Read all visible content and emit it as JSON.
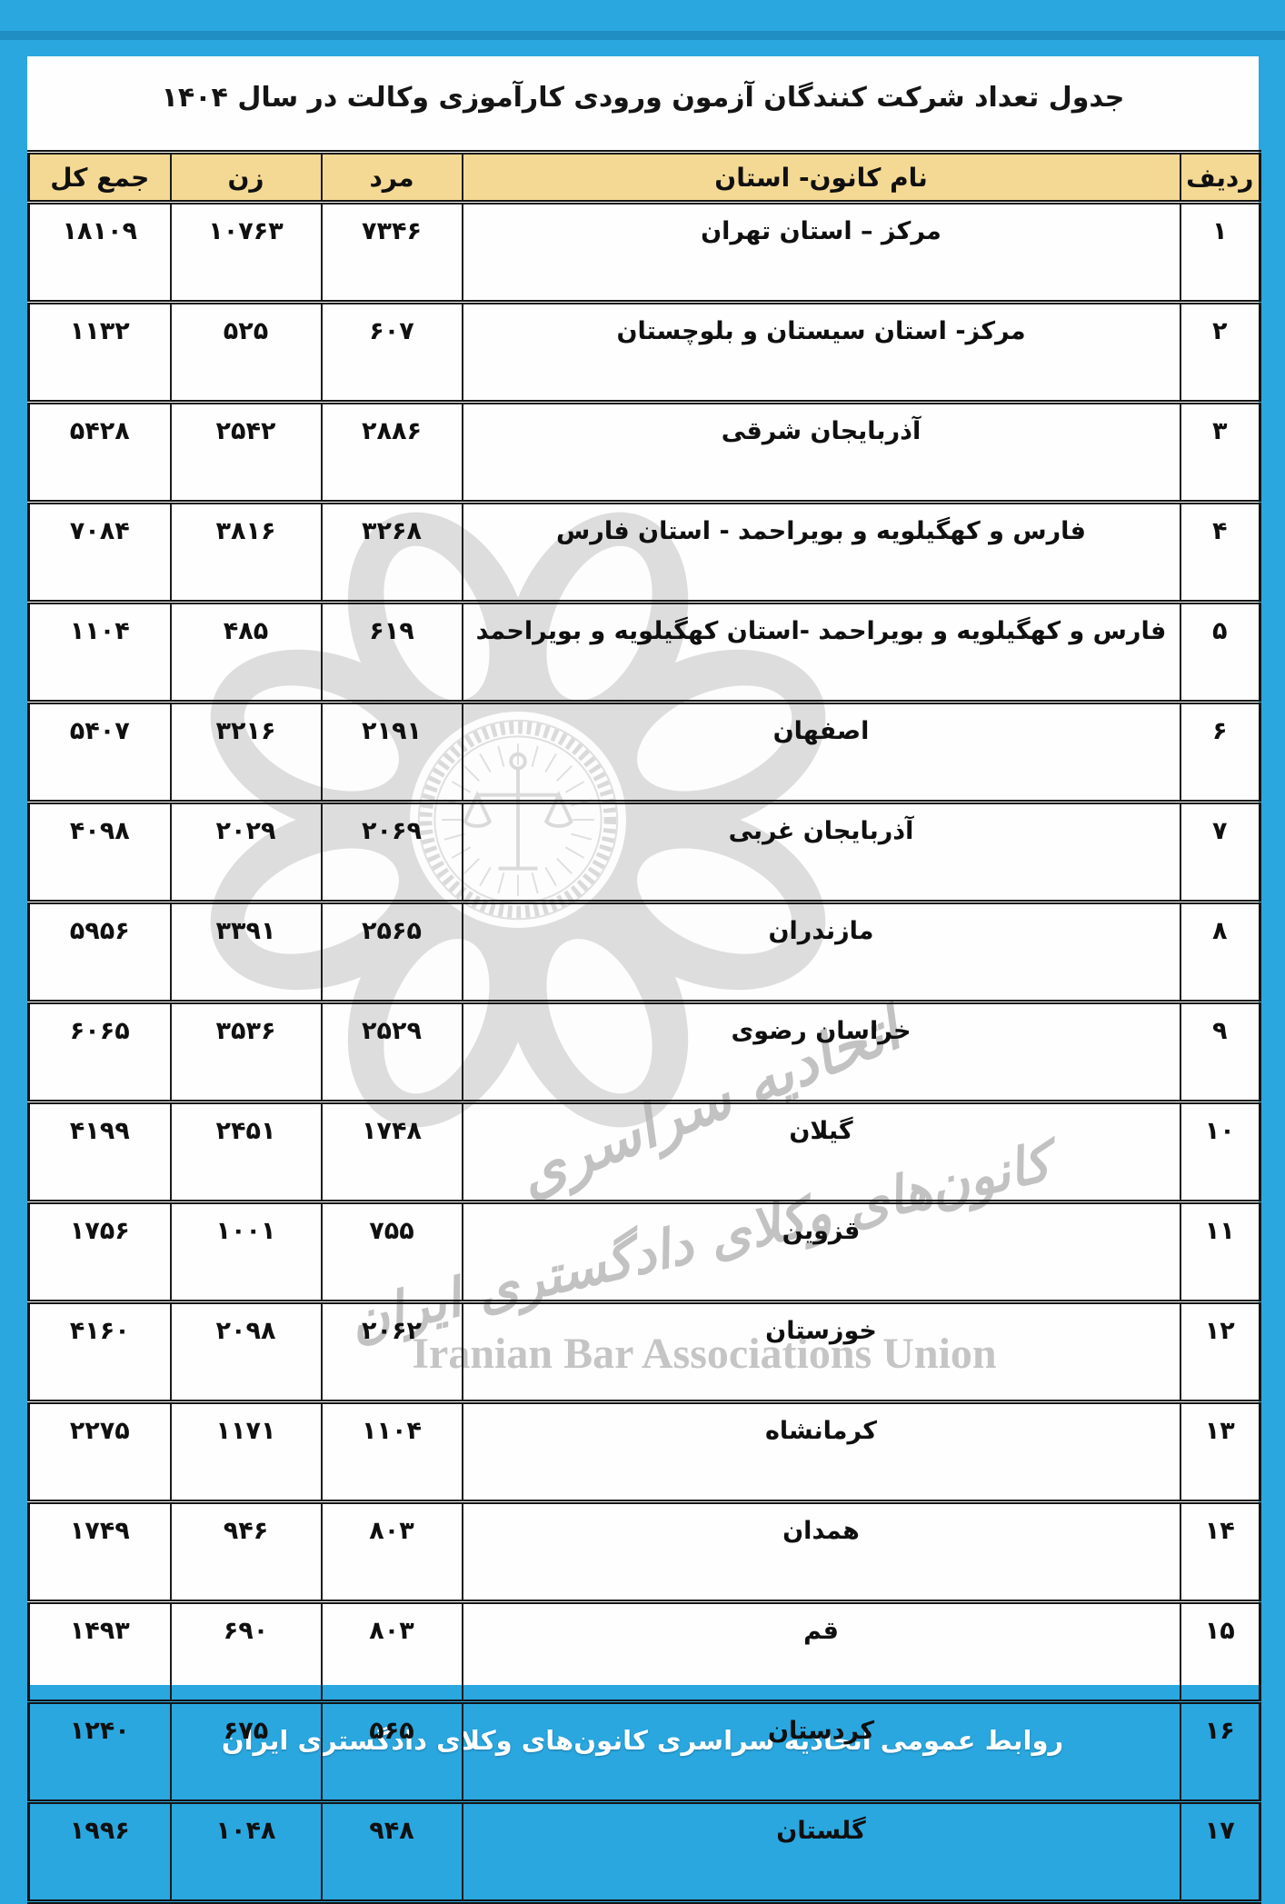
{
  "page": {
    "title": "جدول تعداد شرکت کنندگان آزمون ورودی کارآموزی وکالت در سال ۱۴۰۴",
    "footer": "روابط عمومی اتحادیه سراسری کانون‌های وکلای دادگستری ایران"
  },
  "table": {
    "headers": {
      "row": "ردیف",
      "name": "نام کانون- استان",
      "male": "مرد",
      "female": "زن",
      "total": "جمع کل"
    },
    "rows": [
      {
        "row": "۱",
        "name": "مرکز – استان تهران",
        "male": "۷۳۴۶",
        "female": "۱۰۷۶۳",
        "total": "۱۸۱۰۹"
      },
      {
        "row": "۲",
        "name": "مرکز- استان سیستان و بلوچستان",
        "male": "۶۰۷",
        "female": "۵۲۵",
        "total": "۱۱۳۲"
      },
      {
        "row": "۳",
        "name": "آذربایجان شرقی",
        "male": "۲۸۸۶",
        "female": "۲۵۴۲",
        "total": "۵۴۲۸"
      },
      {
        "row": "۴",
        "name": "فارس و کهگیلویه و بویراحمد - استان فارس",
        "male": "۳۲۶۸",
        "female": "۳۸۱۶",
        "total": "۷۰۸۴"
      },
      {
        "row": "۵",
        "name": "فارس و کهگیلویه و بویراحمد -استان کهگیلویه و بویراحمد",
        "male": "۶۱۹",
        "female": "۴۸۵",
        "total": "۱۱۰۴"
      },
      {
        "row": "۶",
        "name": "اصفهان",
        "male": "۲۱۹۱",
        "female": "۳۲۱۶",
        "total": "۵۴۰۷"
      },
      {
        "row": "۷",
        "name": "آذربایجان غربی",
        "male": "۲۰۶۹",
        "female": "۲۰۲۹",
        "total": "۴۰۹۸"
      },
      {
        "row": "۸",
        "name": "مازندران",
        "male": "۲۵۶۵",
        "female": "۳۳۹۱",
        "total": "۵۹۵۶"
      },
      {
        "row": "۹",
        "name": "خراسان رضوی",
        "male": "۲۵۲۹",
        "female": "۳۵۳۶",
        "total": "۶۰۶۵"
      },
      {
        "row": "۱۰",
        "name": "گیلان",
        "male": "۱۷۴۸",
        "female": "۲۴۵۱",
        "total": "۴۱۹۹"
      },
      {
        "row": "۱۱",
        "name": "قزوین",
        "male": "۷۵۵",
        "female": "۱۰۰۱",
        "total": "۱۷۵۶"
      },
      {
        "row": "۱۲",
        "name": "خوزستان",
        "male": "۲۰۶۲",
        "female": "۲۰۹۸",
        "total": "۴۱۶۰"
      },
      {
        "row": "۱۳",
        "name": "کرمانشاه",
        "male": "۱۱۰۴",
        "female": "۱۱۷۱",
        "total": "۲۲۷۵"
      },
      {
        "row": "۱۴",
        "name": "همدان",
        "male": "۸۰۳",
        "female": "۹۴۶",
        "total": "۱۷۴۹"
      },
      {
        "row": "۱۵",
        "name": "قم",
        "male": "۸۰۳",
        "female": "۶۹۰",
        "total": "۱۴۹۳"
      },
      {
        "row": "۱۶",
        "name": "کردستان",
        "male": "۵۶۵",
        "female": "۶۷۵",
        "total": "۱۲۴۰"
      },
      {
        "row": "۱۷",
        "name": "گلستان",
        "male": "۹۴۸",
        "female": "۱۰۴۸",
        "total": "۱۹۹۶"
      }
    ]
  },
  "watermark": {
    "fa_line1": "اتحادیه سراسری",
    "fa_line2": "کانون‌های وکلای دادگستری ایران",
    "en": "Iranian Bar Associations Union"
  },
  "colors": {
    "frame_blue": "#2aa7df",
    "header_bg": "#f4d994",
    "border": "#1c1c1c",
    "watermark_gray": "#b9b9b9",
    "footer_text": "#ffffff"
  }
}
